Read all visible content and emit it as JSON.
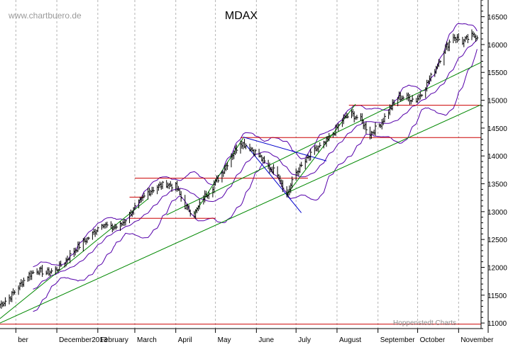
{
  "chart_data": {
    "type": "ohlc",
    "title": "MDAX",
    "watermark": "www.chartbuero.de",
    "credit": "Hoppenstedt Charts",
    "ylim": [
      10900,
      16800
    ],
    "yticks": [
      11000,
      11500,
      12000,
      12500,
      13000,
      13500,
      14000,
      14500,
      15000,
      15500,
      16000,
      16500
    ],
    "x_range": [
      "2012-11-19",
      "2013-11-18"
    ],
    "month_ticks": [
      {
        "date": "2012-12-01",
        "label": "ber"
      },
      {
        "date": "2013-01-01",
        "label": "December2013"
      },
      {
        "date": "2013-02-01",
        "label": "February"
      },
      {
        "date": "2013-03-01",
        "label": "March"
      },
      {
        "date": "2013-04-01",
        "label": "April"
      },
      {
        "date": "2013-05-01",
        "label": "May"
      },
      {
        "date": "2013-06-01",
        "label": "June"
      },
      {
        "date": "2013-07-01",
        "label": "July"
      },
      {
        "date": "2013-08-01",
        "label": "August"
      },
      {
        "date": "2013-09-01",
        "label": "September"
      },
      {
        "date": "2013-10-01",
        "label": "October"
      },
      {
        "date": "2013-11-01",
        "label": "November"
      }
    ],
    "price_anchors": [
      [
        "2012-11-19",
        11330
      ],
      [
        "2012-11-26",
        11450
      ],
      [
        "2012-12-03",
        11650
      ],
      [
        "2012-12-10",
        11850
      ],
      [
        "2012-12-17",
        11950
      ],
      [
        "2012-12-24",
        11900
      ],
      [
        "2012-12-31",
        11950
      ],
      [
        "2013-01-07",
        12100
      ],
      [
        "2013-01-14",
        12300
      ],
      [
        "2013-01-21",
        12450
      ],
      [
        "2013-01-28",
        12600
      ],
      [
        "2013-02-04",
        12800
      ],
      [
        "2013-02-11",
        12700
      ],
      [
        "2013-02-18",
        12750
      ],
      [
        "2013-02-25",
        12950
      ],
      [
        "2013-03-04",
        13150
      ],
      [
        "2013-03-11",
        13350
      ],
      [
        "2013-03-18",
        13450
      ],
      [
        "2013-03-25",
        13500
      ],
      [
        "2013-04-01",
        13450
      ],
      [
        "2013-04-08",
        13100
      ],
      [
        "2013-04-15",
        12950
      ],
      [
        "2013-04-22",
        13250
      ],
      [
        "2013-04-29",
        13450
      ],
      [
        "2013-05-06",
        13700
      ],
      [
        "2013-05-13",
        14000
      ],
      [
        "2013-05-20",
        14250
      ],
      [
        "2013-05-27",
        14150
      ],
      [
        "2013-06-03",
        14000
      ],
      [
        "2013-06-10",
        13800
      ],
      [
        "2013-06-17",
        13700
      ],
      [
        "2013-06-24",
        13300
      ],
      [
        "2013-07-01",
        13700
      ],
      [
        "2013-07-08",
        13900
      ],
      [
        "2013-07-15",
        14100
      ],
      [
        "2013-07-22",
        14200
      ],
      [
        "2013-07-29",
        14400
      ],
      [
        "2013-08-05",
        14650
      ],
      [
        "2013-08-12",
        14750
      ],
      [
        "2013-08-19",
        14650
      ],
      [
        "2013-08-26",
        14400
      ],
      [
        "2013-09-02",
        14550
      ],
      [
        "2013-09-09",
        14800
      ],
      [
        "2013-09-16",
        15050
      ],
      [
        "2013-09-23",
        15050
      ],
      [
        "2013-09-30",
        15000
      ],
      [
        "2013-10-07",
        15250
      ],
      [
        "2013-10-14",
        15550
      ],
      [
        "2013-10-21",
        15900
      ],
      [
        "2013-10-28",
        16150
      ],
      [
        "2013-11-04",
        16050
      ],
      [
        "2013-11-11",
        16150
      ]
    ],
    "horizontal_lines": [
      {
        "color": "#cc0000",
        "y": 10980,
        "from": "2012-11-19",
        "to": "2013-11-18"
      },
      {
        "color": "#cc0000",
        "y": 12880,
        "from": "2013-02-25",
        "to": "2013-05-01"
      },
      {
        "color": "#cc0000",
        "y": 13260,
        "from": "2013-02-25",
        "to": "2013-03-08"
      },
      {
        "color": "#cc0000",
        "y": 13600,
        "from": "2013-03-01",
        "to": "2013-07-10"
      },
      {
        "color": "#cc0000",
        "y": 14330,
        "from": "2013-05-20",
        "to": "2013-11-18"
      },
      {
        "color": "#cc0000",
        "y": 14910,
        "from": "2013-08-10",
        "to": "2013-11-18"
      }
    ],
    "trend_lines": [
      {
        "color": "#008800",
        "from": [
          "2012-11-19",
          11000
        ],
        "to": [
          "2013-11-18",
          14920
        ]
      },
      {
        "color": "#008800",
        "from": [
          "2013-03-25",
          12940
        ],
        "to": [
          "2013-11-18",
          15680
        ]
      },
      {
        "color": "#008800",
        "from": [
          "2012-11-19",
          11080
        ],
        "to": [
          "2013-03-11",
          13230
        ]
      },
      {
        "color": "#008800",
        "from": [
          "2013-04-15",
          12960
        ],
        "to": [
          "2013-05-22",
          14320
        ]
      },
      {
        "color": "#008800",
        "from": [
          "2013-06-24",
          13310
        ],
        "to": [
          "2013-08-15",
          14930
        ]
      },
      {
        "color": "#0000cc",
        "from": [
          "2013-05-22",
          14340
        ],
        "to": [
          "2013-07-24",
          13910
        ]
      },
      {
        "color": "#0000cc",
        "from": [
          "2013-05-24",
          14200
        ],
        "to": [
          "2013-07-05",
          12980
        ]
      }
    ],
    "indicators": [
      "Bollinger Bands (purple)",
      "Moving Average (purple)"
    ]
  },
  "colors": {
    "background": "#ffffff",
    "bars": "#000000",
    "bands": "#5500aa",
    "grid": "#b4b4b4",
    "support": "#cc0000",
    "trend": "#008800",
    "downtrend": "#0000cc",
    "watermark": "#9a9a9a"
  }
}
